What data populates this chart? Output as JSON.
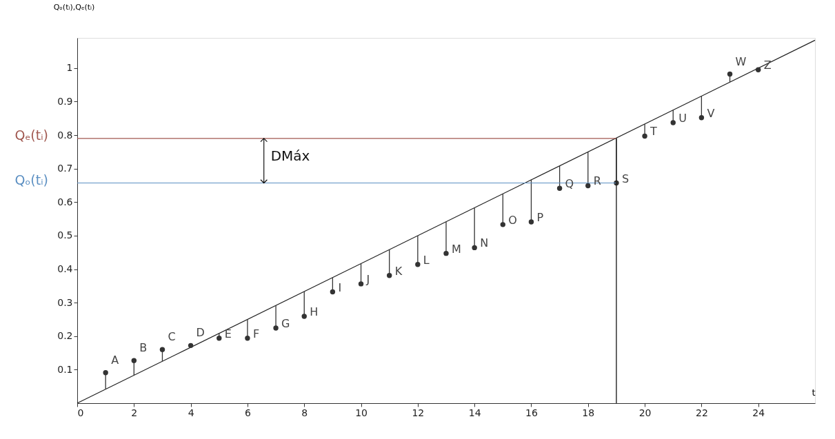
{
  "chart_data": {
    "type": "scatter",
    "xlabel": "t",
    "ylabel": "Qₒ(tᵢ),Qₑ(tᵢ)",
    "xlim": [
      0,
      26
    ],
    "ylim": [
      0,
      1.09
    ],
    "xticks": [
      0,
      2,
      4,
      6,
      8,
      10,
      12,
      14,
      16,
      18,
      20,
      22,
      24
    ],
    "yticks": [
      0.1,
      0.2,
      0.3,
      0.4,
      0.5,
      0.6,
      0.7,
      0.8,
      0.9,
      1
    ],
    "grid": false,
    "series": [
      {
        "color": "#333333",
        "marker": "circle",
        "x": [
          1,
          2,
          3,
          4,
          5,
          6,
          7,
          8,
          9,
          10,
          11,
          12,
          13,
          14,
          15,
          16,
          17,
          18,
          19,
          20,
          21,
          22,
          23,
          24
        ],
        "values": [
          0.091,
          0.127,
          0.16,
          0.172,
          0.194,
          0.194,
          0.224,
          0.259,
          0.332,
          0.356,
          0.381,
          0.414,
          0.447,
          0.464,
          0.533,
          0.541,
          0.641,
          0.649,
          0.657,
          0.797,
          0.837,
          0.852,
          0.982,
          0.995
        ],
        "errors": [
          [
            0.042,
            0.091
          ],
          [
            0.083,
            0.127
          ],
          [
            0.125,
            0.16
          ],
          [
            0.167,
            0.172
          ],
          [
            0.194,
            0.208
          ],
          [
            0.194,
            0.25
          ],
          [
            0.224,
            0.292
          ],
          [
            0.259,
            0.333
          ],
          [
            0.332,
            0.375
          ],
          [
            0.356,
            0.417
          ],
          [
            0.381,
            0.458
          ],
          [
            0.414,
            0.5
          ],
          [
            0.447,
            0.542
          ],
          [
            0.464,
            0.583
          ],
          [
            0.533,
            0.625
          ],
          [
            0.541,
            0.667
          ],
          [
            0.641,
            0.708
          ],
          [
            0.649,
            0.75
          ],
          [
            0.657,
            0.792
          ],
          [
            0.797,
            0.833
          ],
          [
            0.837,
            0.875
          ],
          [
            0.852,
            0.917
          ],
          [
            0.958,
            0.982
          ],
          null
        ]
      },
      {
        "type": "line",
        "color": "#222222",
        "x": [
          0,
          26
        ],
        "values": [
          0,
          1.083
        ]
      }
    ],
    "ref_lines": [
      {
        "axis": "y",
        "value": 0.79,
        "label": "Qₑ(tᵢ)",
        "color": "#a0574f"
      },
      {
        "axis": "y",
        "value": 0.657,
        "label": "Qₒ(tᵢ)",
        "color": "#5b8fc2"
      },
      {
        "axis": "x",
        "value": 19,
        "color": "#222222"
      }
    ],
    "annotations": [
      "DMáx",
      {
        "text": "A",
        "x": 1,
        "y": 0.091
      },
      {
        "text": "B",
        "x": 2,
        "y": 0.127
      },
      {
        "text": "C",
        "x": 3,
        "y": 0.16
      },
      {
        "text": "D",
        "x": 4,
        "y": 0.172
      },
      {
        "text": "E",
        "x": 5,
        "y": 0.194
      },
      {
        "text": "F",
        "x": 6,
        "y": 0.194
      },
      {
        "text": "G",
        "x": 7,
        "y": 0.224
      },
      {
        "text": "H",
        "x": 8,
        "y": 0.259
      },
      {
        "text": "I",
        "x": 9,
        "y": 0.332
      },
      {
        "text": "J",
        "x": 10,
        "y": 0.356
      },
      {
        "text": "K",
        "x": 11,
        "y": 0.381
      },
      {
        "text": "L",
        "x": 12,
        "y": 0.414
      },
      {
        "text": "M",
        "x": 13,
        "y": 0.447
      },
      {
        "text": "N",
        "x": 14,
        "y": 0.464
      },
      {
        "text": "O",
        "x": 15,
        "y": 0.533
      },
      {
        "text": "P",
        "x": 16,
        "y": 0.541
      },
      {
        "text": "Q",
        "x": 17,
        "y": 0.641
      },
      {
        "text": "R",
        "x": 18,
        "y": 0.649
      },
      {
        "text": "S",
        "x": 19,
        "y": 0.657
      },
      {
        "text": "T",
        "x": 20,
        "y": 0.797
      },
      {
        "text": "U",
        "x": 21,
        "y": 0.837
      },
      {
        "text": "V",
        "x": 22,
        "y": 0.852
      },
      {
        "text": "W",
        "x": 23,
        "y": 0.982
      },
      {
        "text": "Z",
        "x": 24,
        "y": 0.995
      }
    ]
  }
}
